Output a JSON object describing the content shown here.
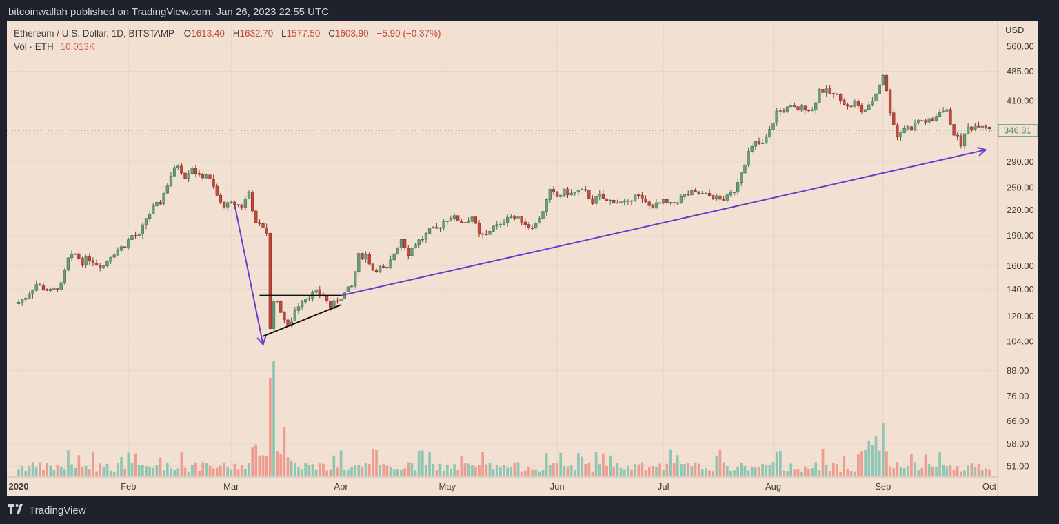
{
  "header": {
    "publisher": "bitcoinwallah published on TradingView.com, Jan 26, 2023 22:55 UTC"
  },
  "footer": {
    "brand": "TradingView"
  },
  "legend": {
    "symbol": "Ethereum / U.S. Dollar, 1D, BITSTAMP",
    "open_label": "O",
    "open": "1613.40",
    "high_label": "H",
    "high": "1632.70",
    "low_label": "L",
    "low": "1577.50",
    "close_label": "C",
    "close": "1603.90",
    "change": "−5.90 (−0.37%)",
    "vol_label": "Vol · ETH",
    "vol_value": "10.013K"
  },
  "axis": {
    "currency": "USD",
    "last_price": "346.31"
  },
  "colors": {
    "up": "#6b9e79",
    "down": "#c2483b",
    "vol_up": "#8fc6b3",
    "vol_down": "#ee9b90",
    "arrow": "#6a3cc9",
    "bg": "#f2e1d3"
  },
  "chart_data": {
    "type": "candlestick",
    "y_scale": "log",
    "y_ticks": [
      560,
      485,
      410,
      340,
      290,
      250,
      220,
      190,
      160,
      140,
      120,
      104,
      88,
      76,
      66,
      58,
      51
    ],
    "y_tick_labels": [
      "560.00",
      "485.00",
      "410.00",
      "",
      "290.00",
      "250.00",
      "220.00",
      "190.00",
      "160.00",
      "140.00",
      "120.00",
      "104.00",
      "88.00",
      "76.00",
      "66.00",
      "58.00",
      "51.00"
    ],
    "x_labels": [
      {
        "label": "2020",
        "date": "2020-01-01",
        "bold": true
      },
      {
        "label": "Feb",
        "date": "2020-02-01"
      },
      {
        "label": "Mar",
        "date": "2020-03-01"
      },
      {
        "label": "Apr",
        "date": "2020-04-01"
      },
      {
        "label": "May",
        "date": "2020-05-01"
      },
      {
        "label": "Jun",
        "date": "2020-06-01"
      },
      {
        "label": "Jul",
        "date": "2020-07-01"
      },
      {
        "label": "Aug",
        "date": "2020-08-01"
      },
      {
        "label": "Sep",
        "date": "2020-09-01"
      },
      {
        "label": "Oct",
        "date": "2020-10-01"
      }
    ],
    "close_series": [
      [
        "2020-01-01",
        130
      ],
      [
        "2020-01-03",
        134
      ],
      [
        "2020-01-06",
        144
      ],
      [
        "2020-01-08",
        141
      ],
      [
        "2020-01-10",
        138
      ],
      [
        "2020-01-13",
        143
      ],
      [
        "2020-01-15",
        166
      ],
      [
        "2020-01-17",
        171
      ],
      [
        "2020-01-19",
        164
      ],
      [
        "2020-01-21",
        167
      ],
      [
        "2020-01-23",
        162
      ],
      [
        "2020-01-25",
        160
      ],
      [
        "2020-01-27",
        170
      ],
      [
        "2020-01-29",
        175
      ],
      [
        "2020-01-31",
        180
      ],
      [
        "2020-02-02",
        190
      ],
      [
        "2020-02-04",
        189
      ],
      [
        "2020-02-06",
        210
      ],
      [
        "2020-02-08",
        222
      ],
      [
        "2020-02-10",
        230
      ],
      [
        "2020-02-13",
        268
      ],
      [
        "2020-02-15",
        285
      ],
      [
        "2020-02-17",
        267
      ],
      [
        "2020-02-19",
        282
      ],
      [
        "2020-02-21",
        265
      ],
      [
        "2020-02-23",
        270
      ],
      [
        "2020-02-25",
        250
      ],
      [
        "2020-02-27",
        228
      ],
      [
        "2020-02-29",
        226
      ],
      [
        "2020-03-02",
        228
      ],
      [
        "2020-03-04",
        224
      ],
      [
        "2020-03-06",
        244
      ],
      [
        "2020-03-08",
        202
      ],
      [
        "2020-03-10",
        200
      ],
      [
        "2020-03-11",
        194
      ],
      [
        "2020-03-12",
        111
      ],
      [
        "2020-03-13",
        133
      ],
      [
        "2020-03-15",
        124
      ],
      [
        "2020-03-17",
        112
      ],
      [
        "2020-03-19",
        124
      ],
      [
        "2020-03-21",
        132
      ],
      [
        "2020-03-23",
        135
      ],
      [
        "2020-03-25",
        137
      ],
      [
        "2020-03-27",
        135
      ],
      [
        "2020-03-29",
        126
      ],
      [
        "2020-03-31",
        132
      ],
      [
        "2020-04-02",
        137
      ],
      [
        "2020-04-04",
        142
      ],
      [
        "2020-04-06",
        169
      ],
      [
        "2020-04-08",
        170
      ],
      [
        "2020-04-10",
        157
      ],
      [
        "2020-04-12",
        158
      ],
      [
        "2020-04-14",
        156
      ],
      [
        "2020-04-16",
        172
      ],
      [
        "2020-04-18",
        187
      ],
      [
        "2020-04-20",
        172
      ],
      [
        "2020-04-22",
        182
      ],
      [
        "2020-04-24",
        187
      ],
      [
        "2020-04-26",
        195
      ],
      [
        "2020-04-28",
        197
      ],
      [
        "2020-04-30",
        206
      ],
      [
        "2020-05-02",
        212
      ],
      [
        "2020-05-04",
        208
      ],
      [
        "2020-05-06",
        205
      ],
      [
        "2020-05-08",
        212
      ],
      [
        "2020-05-10",
        190
      ],
      [
        "2020-05-12",
        190
      ],
      [
        "2020-05-14",
        202
      ],
      [
        "2020-05-16",
        200
      ],
      [
        "2020-05-18",
        214
      ],
      [
        "2020-05-20",
        210
      ],
      [
        "2020-05-22",
        208
      ],
      [
        "2020-05-24",
        200
      ],
      [
        "2020-05-26",
        203
      ],
      [
        "2020-05-28",
        220
      ],
      [
        "2020-05-30",
        244
      ],
      [
        "2020-06-01",
        237
      ],
      [
        "2020-06-03",
        244
      ],
      [
        "2020-06-05",
        241
      ],
      [
        "2020-06-07",
        245
      ],
      [
        "2020-06-09",
        243
      ],
      [
        "2020-06-11",
        231
      ],
      [
        "2020-06-13",
        238
      ],
      [
        "2020-06-15",
        231
      ],
      [
        "2020-06-17",
        232
      ],
      [
        "2020-06-19",
        229
      ],
      [
        "2020-06-21",
        228
      ],
      [
        "2020-06-23",
        243
      ],
      [
        "2020-06-25",
        232
      ],
      [
        "2020-06-27",
        225
      ],
      [
        "2020-06-29",
        226
      ],
      [
        "2020-07-01",
        230
      ],
      [
        "2020-07-03",
        226
      ],
      [
        "2020-07-05",
        232
      ],
      [
        "2020-07-07",
        239
      ],
      [
        "2020-07-09",
        242
      ],
      [
        "2020-07-11",
        241
      ],
      [
        "2020-07-13",
        239
      ],
      [
        "2020-07-15",
        238
      ],
      [
        "2020-07-17",
        233
      ],
      [
        "2020-07-19",
        236
      ],
      [
        "2020-07-21",
        246
      ],
      [
        "2020-07-23",
        275
      ],
      [
        "2020-07-25",
        305
      ],
      [
        "2020-07-27",
        322
      ],
      [
        "2020-07-29",
        319
      ],
      [
        "2020-07-31",
        345
      ],
      [
        "2020-08-02",
        385
      ],
      [
        "2020-08-04",
        389
      ],
      [
        "2020-08-06",
        395
      ],
      [
        "2020-08-08",
        391
      ],
      [
        "2020-08-10",
        395
      ],
      [
        "2020-08-12",
        388
      ],
      [
        "2020-08-14",
        437
      ],
      [
        "2020-08-16",
        432
      ],
      [
        "2020-08-18",
        424
      ],
      [
        "2020-08-20",
        418
      ],
      [
        "2020-08-22",
        395
      ],
      [
        "2020-08-24",
        406
      ],
      [
        "2020-08-26",
        386
      ],
      [
        "2020-08-28",
        396
      ],
      [
        "2020-08-30",
        428
      ],
      [
        "2020-09-01",
        478
      ],
      [
        "2020-09-03",
        388
      ],
      [
        "2020-09-05",
        335
      ],
      [
        "2020-09-07",
        352
      ],
      [
        "2020-09-09",
        351
      ],
      [
        "2020-09-11",
        367
      ],
      [
        "2020-09-13",
        365
      ],
      [
        "2020-09-15",
        365
      ],
      [
        "2020-09-17",
        389
      ],
      [
        "2020-09-19",
        385
      ],
      [
        "2020-09-21",
        341
      ],
      [
        "2020-09-23",
        321
      ],
      [
        "2020-09-25",
        352
      ],
      [
        "2020-09-27",
        355
      ],
      [
        "2020-09-29",
        359
      ],
      [
        "2020-10-01",
        353
      ],
      [
        "2020-10-03",
        346
      ]
    ],
    "volume_peak_date": "2020-03-13",
    "annotations": [
      {
        "type": "arrow",
        "from": [
          "2020-03-02",
          226
        ],
        "to": [
          "2020-03-10",
          102
        ]
      },
      {
        "type": "line",
        "from": [
          "2020-03-09",
          135
        ],
        "to": [
          "2020-04-01",
          135
        ]
      },
      {
        "type": "line",
        "from": [
          "2020-03-10",
          107
        ],
        "to": [
          "2020-04-01",
          128
        ]
      },
      {
        "type": "arrow",
        "from": [
          "2020-04-01",
          135
        ],
        "to": [
          "2020-09-30",
          310
        ]
      }
    ]
  }
}
